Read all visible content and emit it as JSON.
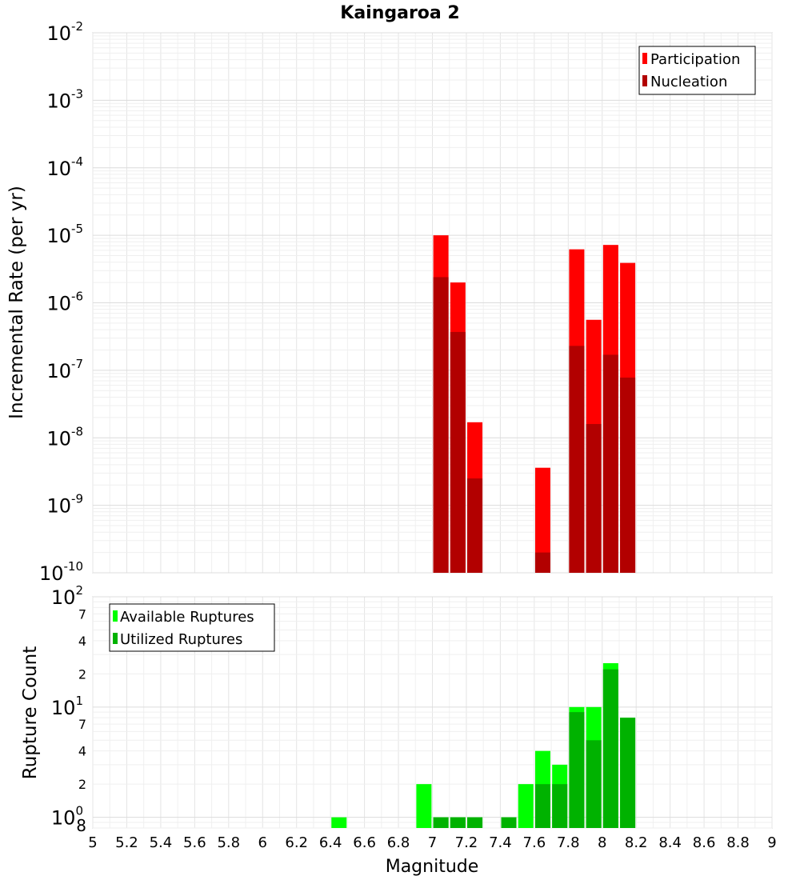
{
  "chart_data": [
    {
      "type": "bar",
      "title": "Kaingaroa 2",
      "ylabel": "Incremental Rate (per yr)",
      "yscale": "log",
      "ylim": [
        1e-10,
        0.01
      ],
      "xlim": [
        5,
        9
      ],
      "legend_position": "top-right",
      "grid": true,
      "y_tick_labels": [
        {
          "base": "10",
          "exp": "-10",
          "value": 1e-10
        },
        {
          "base": "10",
          "exp": "-9",
          "value": 1e-09
        },
        {
          "base": "10",
          "exp": "-8",
          "value": 1e-08
        },
        {
          "base": "10",
          "exp": "-7",
          "value": 1e-07
        },
        {
          "base": "10",
          "exp": "-6",
          "value": 1e-06
        },
        {
          "base": "10",
          "exp": "-5",
          "value": 1e-05
        },
        {
          "base": "10",
          "exp": "-4",
          "value": 0.0001
        },
        {
          "base": "10",
          "exp": "-3",
          "value": 0.001
        },
        {
          "base": "10",
          "exp": "-2",
          "value": 0.01
        }
      ],
      "series": [
        {
          "name": "Participation",
          "color": "#ff0000",
          "x": [
            7.05,
            7.15,
            7.25,
            7.65,
            7.85,
            7.95,
            8.05,
            8.15
          ],
          "values": [
            1e-05,
            2e-06,
            1.7e-08,
            3.6e-09,
            6.2e-06,
            5.6e-07,
            7.2e-06,
            3.9e-06
          ]
        },
        {
          "name": "Nucleation",
          "color": "#b20000",
          "x": [
            7.05,
            7.15,
            7.25,
            7.65,
            7.85,
            7.95,
            8.05,
            8.15
          ],
          "values": [
            2.4e-06,
            3.7e-07,
            2.5e-09,
            2e-10,
            2.3e-07,
            1.6e-08,
            1.7e-07,
            7.8e-08
          ]
        }
      ]
    },
    {
      "type": "bar",
      "xlabel": "Magnitude",
      "ylabel": "Rupture Count",
      "yscale": "log",
      "ylim": [
        0.8,
        100
      ],
      "xlim": [
        5,
        9
      ],
      "legend_position": "top-left",
      "grid": true,
      "x_tick_labels": [
        "5",
        "5.2",
        "5.4",
        "5.6",
        "5.8",
        "6",
        "6.2",
        "6.4",
        "6.6",
        "6.8",
        "7",
        "7.2",
        "7.4",
        "7.6",
        "7.8",
        "8",
        "8.2",
        "8.4",
        "8.6",
        "8.8",
        "9"
      ],
      "y_major_tick_labels": [
        {
          "base": "10",
          "exp": "0",
          "value": 1
        },
        {
          "base": "10",
          "exp": "1",
          "value": 10
        },
        {
          "base": "10",
          "exp": "2",
          "value": 100
        }
      ],
      "y_minor_tick_labels": [
        {
          "label": "8",
          "value": 0.8
        },
        {
          "label": "2",
          "value": 2
        },
        {
          "label": "4",
          "value": 4
        },
        {
          "label": "7",
          "value": 7
        },
        {
          "label": "2",
          "value": 20
        },
        {
          "label": "4",
          "value": 40
        },
        {
          "label": "7",
          "value": 70
        }
      ],
      "series": [
        {
          "name": "Available Ruptures",
          "color": "#00ff00",
          "x": [
            6.45,
            6.95,
            7.05,
            7.15,
            7.25,
            7.45,
            7.55,
            7.65,
            7.75,
            7.85,
            7.95,
            8.05,
            8.15
          ],
          "values": [
            1,
            2,
            1,
            1,
            1,
            1,
            2,
            4,
            3,
            10,
            10,
            25,
            8
          ]
        },
        {
          "name": "Utilized Ruptures",
          "color": "#00b200",
          "x": [
            7.05,
            7.15,
            7.25,
            7.45,
            7.65,
            7.75,
            7.85,
            7.95,
            8.05,
            8.15
          ],
          "values": [
            1,
            1,
            1,
            1,
            2,
            2,
            9,
            5,
            22,
            8
          ]
        }
      ]
    }
  ]
}
